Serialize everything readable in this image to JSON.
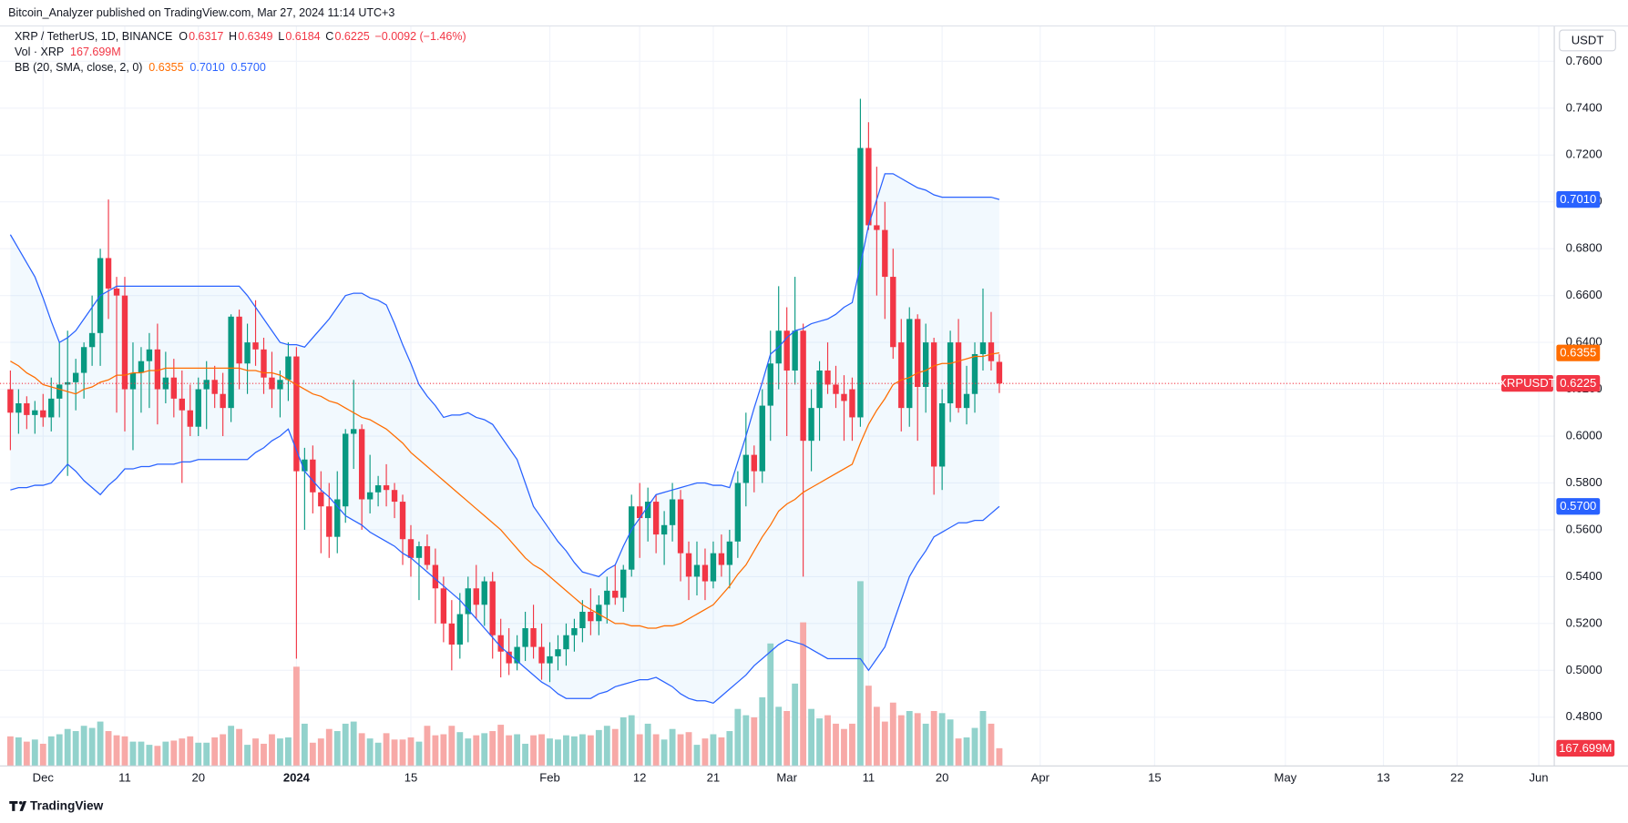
{
  "chart_data": {
    "type": "candlestick",
    "header": "Bitcoin_Analyzer published on TradingView.com, Mar 27, 2024 11:14 UTC+3",
    "symbol": "XRP / TetherUS, 1D, BINANCE",
    "ohlc_labels": [
      "O",
      "H",
      "L",
      "C"
    ],
    "ohlc_values": [
      "0.6317",
      "0.6349",
      "0.6184",
      "0.6225"
    ],
    "change": "−0.0092 (−1.46%)",
    "volume_title": "Vol · XRP",
    "volume_value": "167.699M",
    "bb_title": "BB (20, SMA, close, 2, 0)",
    "bb_values": [
      "0.6355",
      "0.7010",
      "0.5700"
    ],
    "currency": "USDT",
    "symbol_tag": "XRPUSDT",
    "brand": "TradingView",
    "up_color": "#089981",
    "down_color": "#f23645",
    "up_volume_color": "#92d2cc",
    "down_volume_color": "#f7a9a7",
    "grid": true,
    "xlim": [
      -1.27,
      188.9
    ],
    "xticks": [
      {
        "value": 4,
        "label": "Dec"
      },
      {
        "value": 14,
        "label": "11"
      },
      {
        "value": 23,
        "label": "20"
      },
      {
        "value": 35,
        "label": "2024"
      },
      {
        "value": 49,
        "label": "15"
      },
      {
        "value": 66,
        "label": "Feb"
      },
      {
        "value": 77,
        "label": "12"
      },
      {
        "value": 86,
        "label": "21"
      },
      {
        "value": 95,
        "label": "Mar"
      },
      {
        "value": 105,
        "label": "11"
      },
      {
        "value": 114,
        "label": "20"
      },
      {
        "value": 126,
        "label": "Apr"
      },
      {
        "value": 140,
        "label": "15"
      },
      {
        "value": 156,
        "label": "May"
      },
      {
        "value": 168,
        "label": "13"
      },
      {
        "value": 177,
        "label": "22"
      },
      {
        "value": 187,
        "label": "Jun"
      }
    ],
    "ylim": [
      0.4592,
      0.7751
    ],
    "yticks": [
      {
        "value": 0.48,
        "label": "0.4800"
      },
      {
        "value": 0.5,
        "label": "0.5000"
      },
      {
        "value": 0.52,
        "label": "0.5200"
      },
      {
        "value": 0.54,
        "label": "0.5400"
      },
      {
        "value": 0.56,
        "label": "0.5600"
      },
      {
        "value": 0.58,
        "label": "0.5800"
      },
      {
        "value": 0.6,
        "label": "0.6000"
      },
      {
        "value": 0.62,
        "label": "0.6200"
      },
      {
        "value": 0.64,
        "label": "0.6400"
      },
      {
        "value": 0.66,
        "label": "0.6600"
      },
      {
        "value": 0.68,
        "label": "0.6800"
      },
      {
        "value": 0.7,
        "label": "0.7000"
      },
      {
        "value": 0.72,
        "label": "0.7200"
      },
      {
        "value": 0.74,
        "label": "0.7400"
      },
      {
        "value": 0.76,
        "label": "0.7600"
      }
    ],
    "open": [
      0.62,
      0.61,
      0.614,
      0.609,
      0.611,
      0.608,
      0.616,
      0.622,
      0.623,
      0.627,
      0.638,
      0.644,
      0.676,
      0.663,
      0.66,
      0.62,
      0.627,
      0.632,
      0.637,
      0.62,
      0.625,
      0.616,
      0.611,
      0.604,
      0.62,
      0.624,
      0.618,
      0.612,
      0.651,
      0.631,
      0.64,
      0.637,
      0.625,
      0.62,
      0.624,
      0.634,
      0.585,
      0.59,
      0.576,
      0.57,
      0.557,
      0.57,
      0.601,
      0.603,
      0.573,
      0.576,
      0.579,
      0.577,
      0.572,
      0.556,
      0.548,
      0.553,
      0.545,
      0.535,
      0.52,
      0.511,
      0.524,
      0.535,
      0.528,
      0.538,
      0.515,
      0.508,
      0.503,
      0.51,
      0.518,
      0.51,
      0.503,
      0.506,
      0.509,
      0.515,
      0.518,
      0.525,
      0.521,
      0.528,
      0.534,
      0.531,
      0.543,
      0.57,
      0.565,
      0.572,
      0.558,
      0.562,
      0.573,
      0.55,
      0.54,
      0.545,
      0.538,
      0.55,
      0.545,
      0.555,
      0.58,
      0.592,
      0.585,
      0.613,
      0.631,
      0.645,
      0.628,
      0.645,
      0.598,
      0.612,
      0.628,
      0.622,
      0.618,
      0.62,
      0.608,
      0.723,
      0.69,
      0.688,
      0.668,
      0.64,
      0.612,
      0.65,
      0.621,
      0.64,
      0.587,
      0.614,
      0.64,
      0.612,
      0.618,
      0.635,
      0.64,
      0.6317
    ],
    "high": [
      0.628,
      0.62,
      0.617,
      0.615,
      0.618,
      0.625,
      0.64,
      0.645,
      0.633,
      0.64,
      0.66,
      0.68,
      0.701,
      0.668,
      0.668,
      0.64,
      0.638,
      0.644,
      0.648,
      0.636,
      0.633,
      0.628,
      0.622,
      0.625,
      0.632,
      0.63,
      0.627,
      0.652,
      0.654,
      0.648,
      0.658,
      0.642,
      0.636,
      0.628,
      0.64,
      0.638,
      0.595,
      0.596,
      0.585,
      0.58,
      0.585,
      0.603,
      0.624,
      0.605,
      0.592,
      0.583,
      0.588,
      0.58,
      0.575,
      0.562,
      0.555,
      0.558,
      0.552,
      0.54,
      0.53,
      0.533,
      0.54,
      0.545,
      0.54,
      0.542,
      0.522,
      0.518,
      0.515,
      0.525,
      0.528,
      0.52,
      0.512,
      0.515,
      0.52,
      0.522,
      0.53,
      0.535,
      0.532,
      0.54,
      0.545,
      0.545,
      0.575,
      0.58,
      0.578,
      0.575,
      0.568,
      0.58,
      0.577,
      0.555,
      0.555,
      0.552,
      0.555,
      0.558,
      0.56,
      0.585,
      0.61,
      0.596,
      0.62,
      0.645,
      0.664,
      0.655,
      0.668,
      0.648,
      0.62,
      0.632,
      0.64,
      0.63,
      0.626,
      0.625,
      0.744,
      0.734,
      0.715,
      0.7,
      0.68,
      0.65,
      0.655,
      0.652,
      0.648,
      0.642,
      0.62,
      0.645,
      0.65,
      0.63,
      0.64,
      0.663,
      0.653,
      0.6349
    ],
    "low": [
      0.594,
      0.601,
      0.603,
      0.601,
      0.604,
      0.602,
      0.608,
      0.583,
      0.611,
      0.616,
      0.63,
      0.63,
      0.65,
      0.61,
      0.602,
      0.594,
      0.61,
      0.612,
      0.605,
      0.614,
      0.608,
      0.58,
      0.6,
      0.6,
      0.603,
      0.612,
      0.6,
      0.606,
      0.62,
      0.618,
      0.63,
      0.618,
      0.612,
      0.608,
      0.615,
      0.505,
      0.56,
      0.567,
      0.55,
      0.548,
      0.55,
      0.563,
      0.586,
      0.56,
      0.567,
      0.57,
      0.57,
      0.565,
      0.545,
      0.54,
      0.53,
      0.543,
      0.52,
      0.512,
      0.5,
      0.505,
      0.512,
      0.522,
      0.519,
      0.505,
      0.497,
      0.498,
      0.5,
      0.504,
      0.505,
      0.496,
      0.495,
      0.5,
      0.502,
      0.508,
      0.512,
      0.515,
      0.515,
      0.52,
      0.528,
      0.525,
      0.54,
      0.548,
      0.555,
      0.55,
      0.545,
      0.555,
      0.538,
      0.53,
      0.532,
      0.53,
      0.535,
      0.54,
      0.535,
      0.548,
      0.57,
      0.576,
      0.58,
      0.598,
      0.62,
      0.6,
      0.622,
      0.54,
      0.585,
      0.598,
      0.618,
      0.612,
      0.598,
      0.598,
      0.604,
      0.688,
      0.66,
      0.65,
      0.633,
      0.602,
      0.604,
      0.598,
      0.61,
      0.575,
      0.577,
      0.606,
      0.61,
      0.605,
      0.61,
      0.628,
      0.628,
      0.6184
    ],
    "close": [
      0.61,
      0.614,
      0.609,
      0.611,
      0.608,
      0.616,
      0.622,
      0.623,
      0.627,
      0.638,
      0.644,
      0.676,
      0.663,
      0.66,
      0.62,
      0.627,
      0.632,
      0.637,
      0.62,
      0.625,
      0.616,
      0.611,
      0.604,
      0.62,
      0.624,
      0.618,
      0.612,
      0.651,
      0.631,
      0.64,
      0.637,
      0.625,
      0.62,
      0.624,
      0.634,
      0.585,
      0.59,
      0.576,
      0.57,
      0.557,
      0.573,
      0.601,
      0.603,
      0.573,
      0.576,
      0.579,
      0.577,
      0.572,
      0.556,
      0.548,
      0.553,
      0.545,
      0.535,
      0.52,
      0.511,
      0.524,
      0.535,
      0.528,
      0.538,
      0.515,
      0.508,
      0.503,
      0.51,
      0.518,
      0.51,
      0.503,
      0.506,
      0.509,
      0.515,
      0.518,
      0.525,
      0.521,
      0.528,
      0.534,
      0.531,
      0.543,
      0.57,
      0.565,
      0.572,
      0.558,
      0.562,
      0.573,
      0.55,
      0.54,
      0.545,
      0.538,
      0.55,
      0.545,
      0.555,
      0.58,
      0.592,
      0.585,
      0.613,
      0.631,
      0.645,
      0.628,
      0.645,
      0.598,
      0.612,
      0.628,
      0.622,
      0.618,
      0.615,
      0.608,
      0.723,
      0.69,
      0.688,
      0.668,
      0.638,
      0.612,
      0.65,
      0.621,
      0.64,
      0.587,
      0.614,
      0.64,
      0.612,
      0.618,
      0.635,
      0.64,
      0.632,
      0.6225
    ],
    "volume": [
      280,
      270,
      230,
      250,
      210,
      280,
      300,
      350,
      330,
      380,
      360,
      420,
      330,
      290,
      280,
      230,
      230,
      200,
      190,
      230,
      240,
      260,
      280,
      220,
      220,
      270,
      300,
      380,
      350,
      200,
      260,
      210,
      300,
      260,
      270,
      940,
      400,
      220,
      260,
      350,
      330,
      400,
      420,
      310,
      260,
      220,
      310,
      250,
      250,
      270,
      230,
      380,
      290,
      300,
      380,
      320,
      260,
      290,
      310,
      330,
      390,
      290,
      300,
      210,
      290,
      300,
      260,
      250,
      290,
      280,
      300,
      290,
      340,
      380,
      350,
      460,
      480,
      300,
      400,
      300,
      250,
      350,
      300,
      320,
      200,
      260,
      300,
      270,
      330,
      540,
      480,
      460,
      650,
      1160,
      560,
      520,
      780,
      1360,
      540,
      450,
      480,
      400,
      350,
      400,
      1750,
      760,
      560,
      420,
      600,
      480,
      520,
      500,
      400,
      520,
      500,
      440,
      260,
      270,
      360,
      520,
      400,
      167.699
    ],
    "bands": {
      "upper": {
        "color": "#2962ff",
        "values": [
          0.686,
          0.68,
          0.674,
          0.668,
          0.659,
          0.649,
          0.64,
          0.642,
          0.645,
          0.65,
          0.655,
          0.66,
          0.662,
          0.664,
          0.664,
          0.664,
          0.664,
          0.664,
          0.664,
          0.664,
          0.664,
          0.664,
          0.664,
          0.664,
          0.664,
          0.664,
          0.664,
          0.664,
          0.664,
          0.66,
          0.655,
          0.65,
          0.645,
          0.64,
          0.639,
          0.639,
          0.638,
          0.642,
          0.646,
          0.65,
          0.655,
          0.66,
          0.661,
          0.661,
          0.659,
          0.658,
          0.656,
          0.648,
          0.639,
          0.631,
          0.622,
          0.617,
          0.613,
          0.608,
          0.609,
          0.609,
          0.61,
          0.608,
          0.607,
          0.605,
          0.6,
          0.595,
          0.59,
          0.58,
          0.57,
          0.565,
          0.56,
          0.555,
          0.551,
          0.546,
          0.542,
          0.541,
          0.54,
          0.543,
          0.545,
          0.553,
          0.56,
          0.565,
          0.57,
          0.575,
          0.576,
          0.577,
          0.578,
          0.579,
          0.58,
          0.58,
          0.579,
          0.579,
          0.578,
          0.589,
          0.6,
          0.612,
          0.623,
          0.635,
          0.638,
          0.642,
          0.645,
          0.646,
          0.648,
          0.649,
          0.65,
          0.652,
          0.655,
          0.657,
          0.673,
          0.69,
          0.701,
          0.712,
          0.712,
          0.71,
          0.708,
          0.706,
          0.705,
          0.703,
          0.702,
          0.702,
          0.702,
          0.702,
          0.702,
          0.702,
          0.702,
          0.701
        ]
      },
      "basis": {
        "color": "#ff6d00",
        "values": [
          0.632,
          0.63,
          0.627,
          0.625,
          0.622,
          0.621,
          0.62,
          0.619,
          0.618,
          0.62,
          0.621,
          0.623,
          0.624,
          0.626,
          0.626,
          0.627,
          0.627,
          0.628,
          0.628,
          0.629,
          0.629,
          0.629,
          0.629,
          0.629,
          0.629,
          0.629,
          0.629,
          0.629,
          0.629,
          0.628,
          0.628,
          0.627,
          0.627,
          0.626,
          0.624,
          0.622,
          0.62,
          0.618,
          0.617,
          0.615,
          0.614,
          0.612,
          0.61,
          0.608,
          0.607,
          0.605,
          0.603,
          0.6,
          0.597,
          0.593,
          0.59,
          0.587,
          0.584,
          0.581,
          0.578,
          0.575,
          0.572,
          0.569,
          0.566,
          0.563,
          0.56,
          0.556,
          0.552,
          0.548,
          0.545,
          0.543,
          0.54,
          0.537,
          0.534,
          0.531,
          0.528,
          0.526,
          0.524,
          0.522,
          0.52,
          0.52,
          0.519,
          0.519,
          0.518,
          0.518,
          0.519,
          0.519,
          0.52,
          0.522,
          0.524,
          0.526,
          0.528,
          0.532,
          0.536,
          0.541,
          0.545,
          0.551,
          0.557,
          0.562,
          0.568,
          0.571,
          0.573,
          0.576,
          0.578,
          0.58,
          0.582,
          0.584,
          0.586,
          0.588,
          0.597,
          0.605,
          0.611,
          0.616,
          0.622,
          0.624,
          0.625,
          0.627,
          0.628,
          0.63,
          0.631,
          0.631,
          0.632,
          0.633,
          0.634,
          0.634,
          0.635,
          0.6355
        ]
      },
      "lower": {
        "color": "#2962ff",
        "values": [
          0.577,
          0.578,
          0.578,
          0.579,
          0.579,
          0.58,
          0.584,
          0.588,
          0.585,
          0.581,
          0.578,
          0.575,
          0.579,
          0.582,
          0.586,
          0.586,
          0.587,
          0.587,
          0.588,
          0.588,
          0.588,
          0.589,
          0.589,
          0.59,
          0.59,
          0.59,
          0.59,
          0.59,
          0.59,
          0.59,
          0.593,
          0.595,
          0.598,
          0.6,
          0.603,
          0.594,
          0.585,
          0.581,
          0.577,
          0.574,
          0.57,
          0.566,
          0.564,
          0.562,
          0.559,
          0.557,
          0.555,
          0.553,
          0.55,
          0.548,
          0.545,
          0.542,
          0.539,
          0.536,
          0.533,
          0.53,
          0.526,
          0.522,
          0.518,
          0.514,
          0.51,
          0.507,
          0.504,
          0.501,
          0.498,
          0.495,
          0.493,
          0.49,
          0.488,
          0.488,
          0.488,
          0.488,
          0.49,
          0.491,
          0.493,
          0.494,
          0.495,
          0.496,
          0.496,
          0.497,
          0.495,
          0.493,
          0.49,
          0.488,
          0.487,
          0.487,
          0.486,
          0.489,
          0.492,
          0.495,
          0.498,
          0.502,
          0.505,
          0.508,
          0.511,
          0.513,
          0.512,
          0.511,
          0.509,
          0.507,
          0.505,
          0.505,
          0.505,
          0.505,
          0.505,
          0.5,
          0.505,
          0.51,
          0.52,
          0.53,
          0.54,
          0.546,
          0.551,
          0.557,
          0.559,
          0.561,
          0.563,
          0.563,
          0.564,
          0.564,
          0.567,
          0.57
        ]
      }
    }
  }
}
